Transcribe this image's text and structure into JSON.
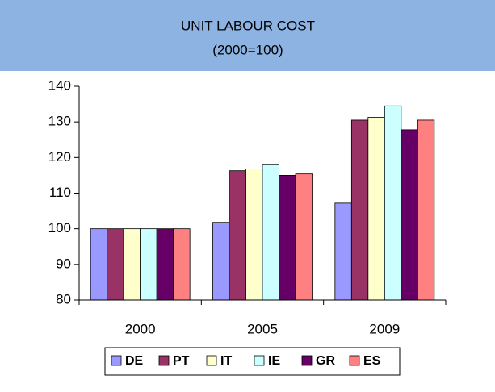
{
  "chart_data": {
    "type": "bar",
    "title": "UNIT LABOUR COST",
    "subtitle": "(2000=100)",
    "categories": [
      "2000",
      "2005",
      "2009"
    ],
    "series": [
      {
        "name": "DE",
        "color": "#9999ff",
        "values": [
          100,
          101.8,
          107.2
        ]
      },
      {
        "name": "PT",
        "color": "#993366",
        "values": [
          100,
          116.3,
          130.5
        ]
      },
      {
        "name": "IT",
        "color": "#ffffcc",
        "values": [
          100,
          116.8,
          131.3
        ]
      },
      {
        "name": "IE",
        "color": "#ccffff",
        "values": [
          100,
          118.1,
          134.5
        ]
      },
      {
        "name": "GR",
        "color": "#660066",
        "values": [
          100,
          115,
          127.8
        ]
      },
      {
        "name": "ES",
        "color": "#ff8080",
        "values": [
          100,
          115.4,
          130.5
        ]
      }
    ],
    "ylim": [
      80,
      140
    ],
    "yticks": [
      80,
      90,
      100,
      110,
      120,
      130,
      140
    ],
    "grid": false,
    "legend": "bottom"
  }
}
